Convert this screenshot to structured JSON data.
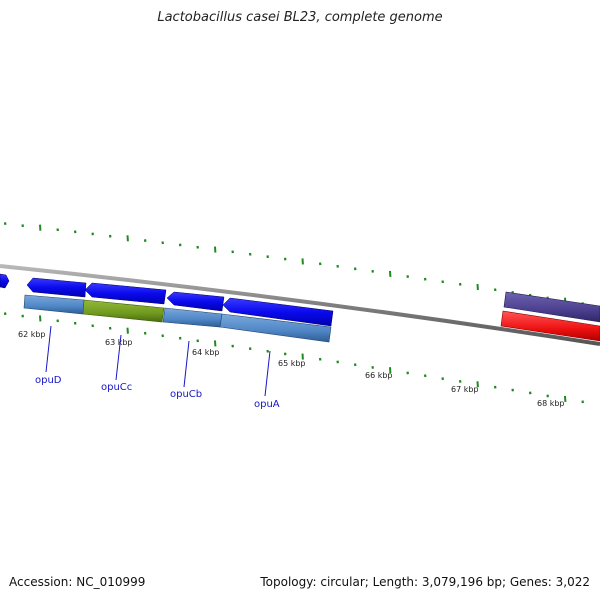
{
  "title": "Lactobacillus casei BL23, complete genome",
  "footer": {
    "accession": "Accession: NC_010999",
    "summary": "Topology: circular; Length: 3,079,196 bp; Genes: 3,022"
  },
  "scale_labels": [
    "62 kbp",
    "63 kbp",
    "64 kbp",
    "65 kbp",
    "66 kbp",
    "67 kbp",
    "68 kbp"
  ],
  "gene_labels": [
    "opuD",
    "opuCc",
    "opuCb",
    "opuA"
  ],
  "colors": {
    "backbone": "#7f7f7f",
    "tick": "#1f8a1f",
    "cds_forward": "#0a0aee",
    "gene_blue": "#4f86c6",
    "gene_olive": "#6f9a1e",
    "purple": "#4b3f8f",
    "red": "#ee1111",
    "label_blue": "#1515c8"
  }
}
